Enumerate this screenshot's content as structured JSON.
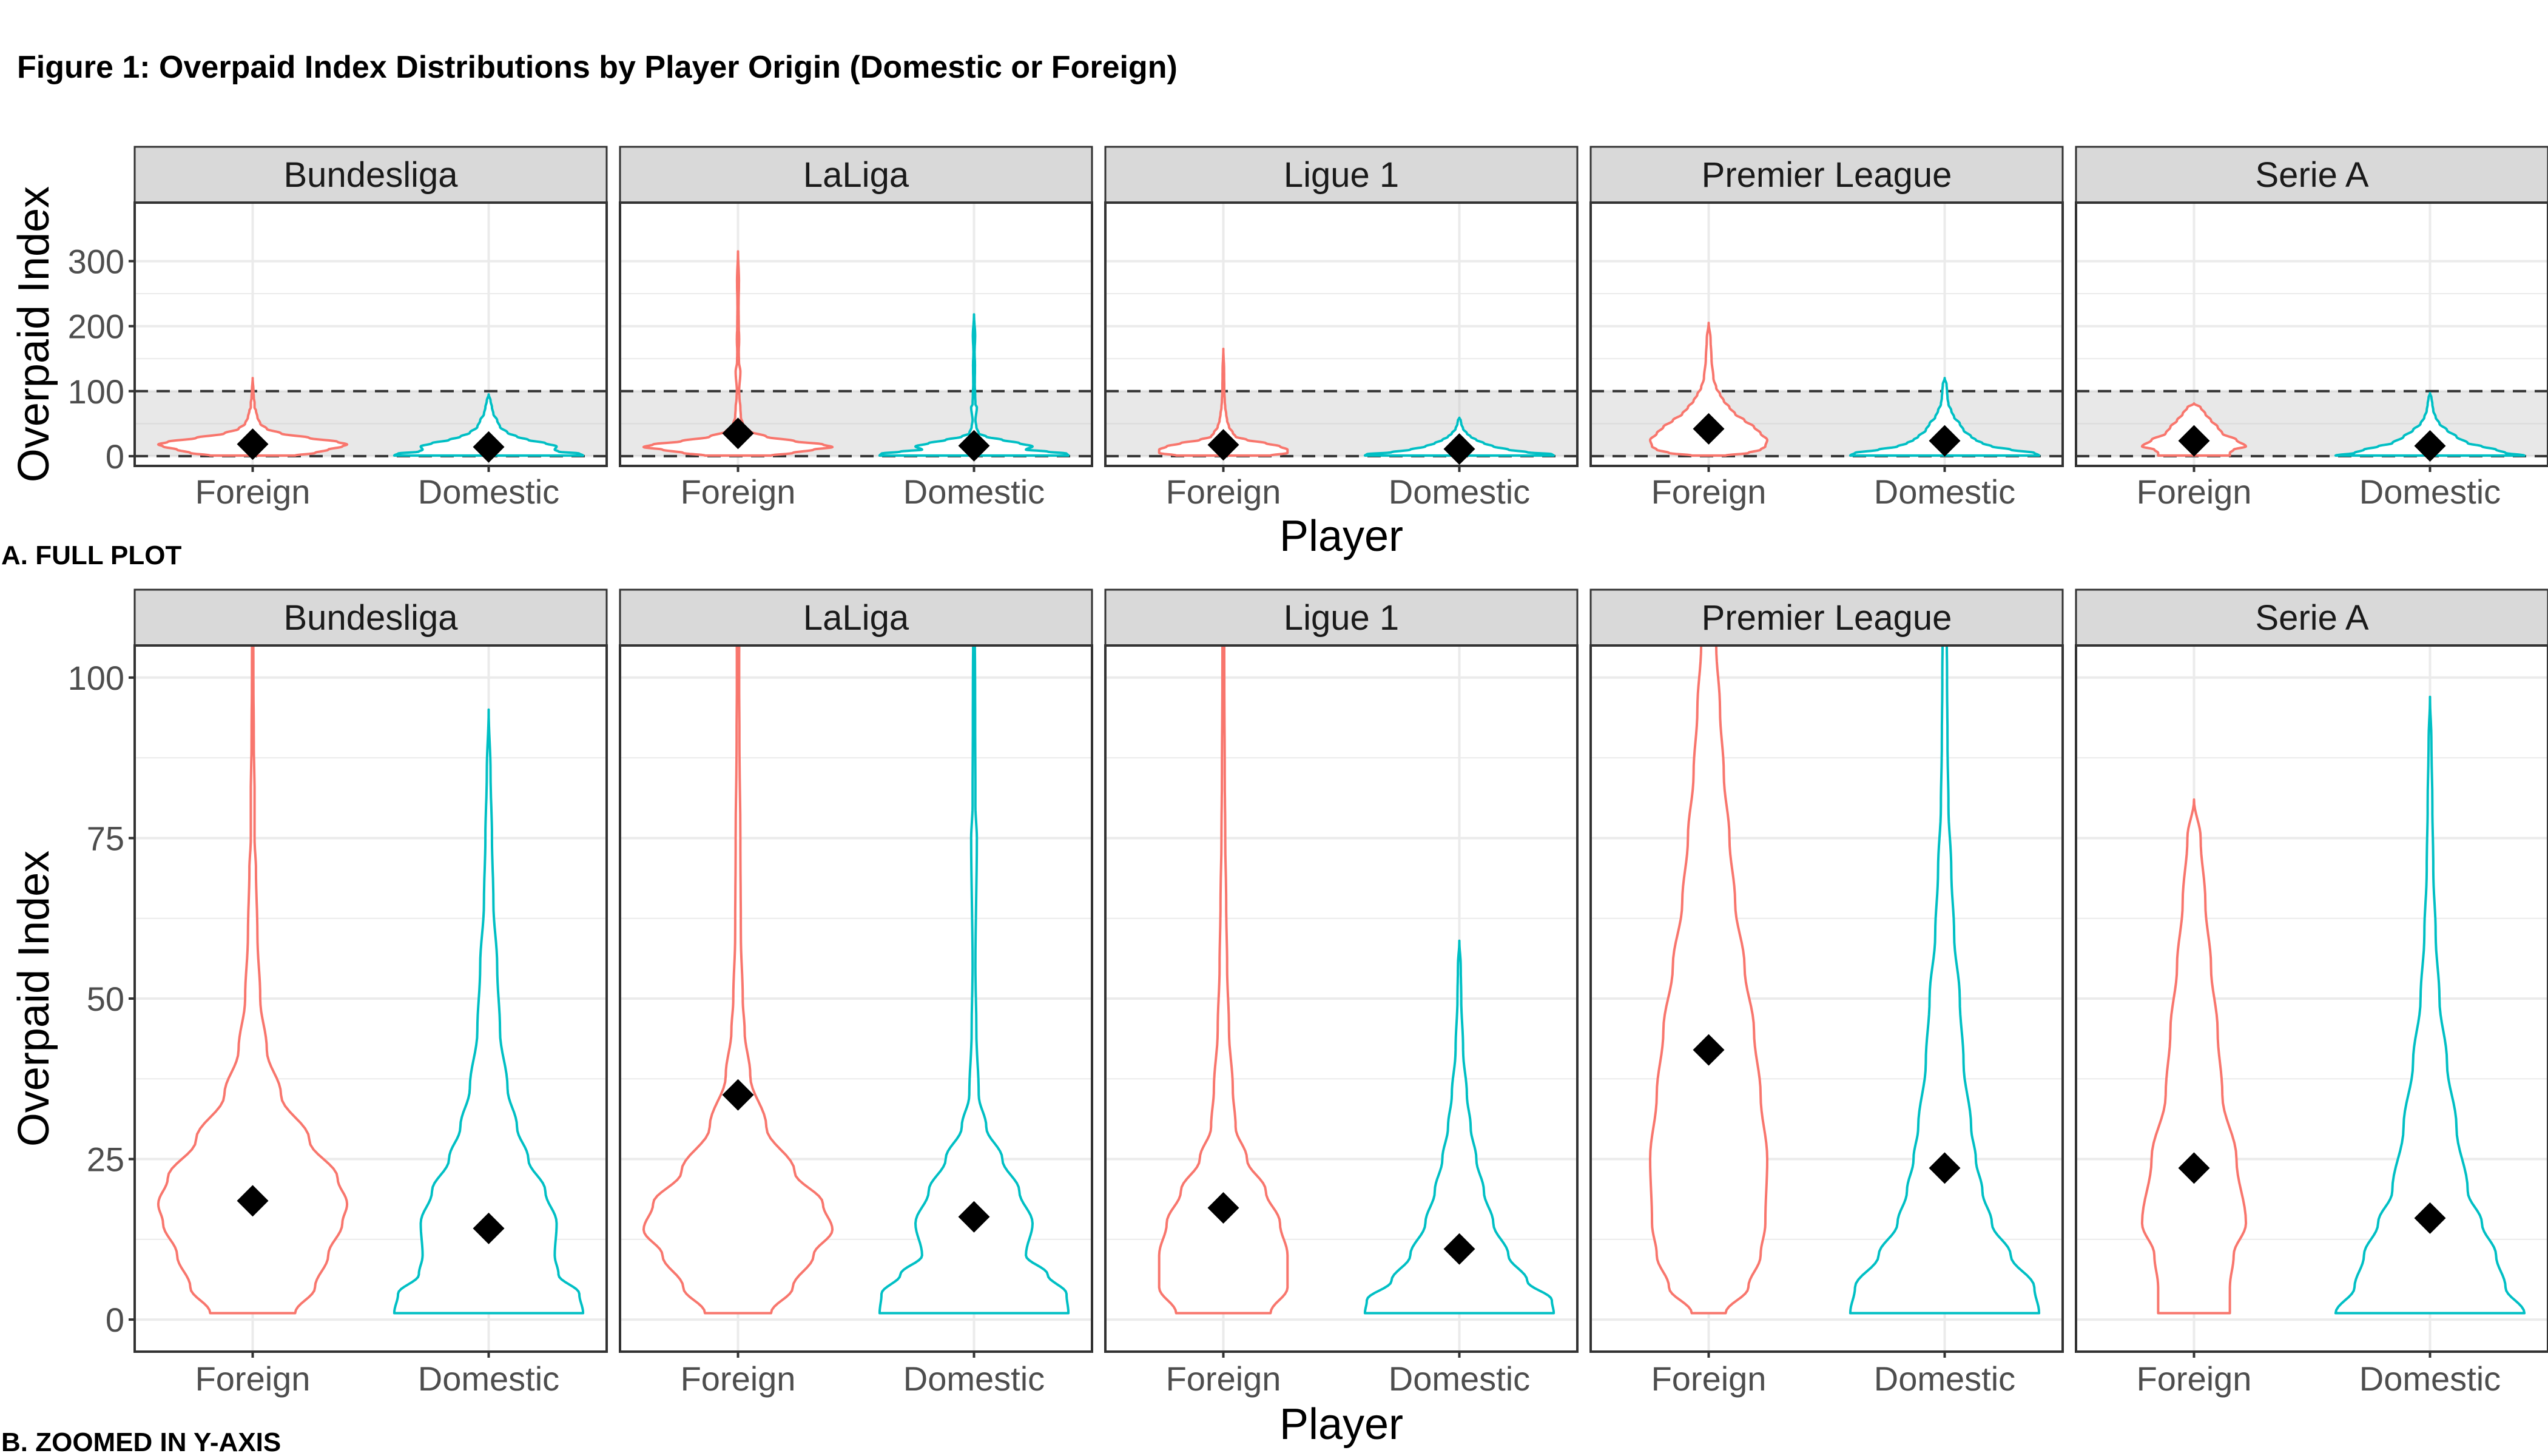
{
  "figure_title": "Figure 1: Overpaid Index Distributions by Player Origin (Domestic or Foreign)",
  "colors": {
    "foreign": "#F8766D",
    "domestic": "#00BFC4",
    "mean_marker": "#000000",
    "strip": "#d9d9d9",
    "band": "#e5e5e5"
  },
  "chart_data": [
    {
      "type": "violin",
      "panel_label": "A. FULL PLOT",
      "xlabel": "Player",
      "ylabel": "Overpaid Index",
      "ylim": [
        -15,
        390
      ],
      "yticks": [
        0,
        100,
        200,
        300
      ],
      "grid": true,
      "reference_lines": [
        0,
        100
      ],
      "shaded_band": [
        0,
        100
      ],
      "facets": [
        "Bundesliga",
        "LaLiga",
        "Ligue 1",
        "Premier League",
        "Serie A"
      ],
      "categories": [
        "Foreign",
        "Domestic"
      ],
      "series": [
        {
          "facet": "Bundesliga",
          "group": "Foreign",
          "min": 1,
          "max": 120,
          "mean": 18.5
        },
        {
          "facet": "Bundesliga",
          "group": "Domestic",
          "min": 1,
          "max": 95,
          "mean": 14.2
        },
        {
          "facet": "LaLiga",
          "group": "Foreign",
          "min": 1,
          "max": 315,
          "mean": 35
        },
        {
          "facet": "LaLiga",
          "group": "Domestic",
          "min": 1,
          "max": 218,
          "mean": 16
        },
        {
          "facet": "Ligue 1",
          "group": "Foreign",
          "min": 1,
          "max": 165,
          "mean": 17.4
        },
        {
          "facet": "Ligue 1",
          "group": "Domestic",
          "min": 1,
          "max": 59,
          "mean": 11
        },
        {
          "facet": "Premier League",
          "group": "Foreign",
          "min": 1,
          "max": 205,
          "mean": 42
        },
        {
          "facet": "Premier League",
          "group": "Domestic",
          "min": 1,
          "max": 120,
          "mean": 23.6
        },
        {
          "facet": "Serie A",
          "group": "Foreign",
          "min": 1,
          "max": 81,
          "mean": 23.6
        },
        {
          "facet": "Serie A",
          "group": "Domestic",
          "min": 1,
          "max": 97,
          "mean": 15.8
        }
      ]
    },
    {
      "type": "violin",
      "panel_label": "B. ZOOMED IN Y-AXIS",
      "xlabel": "Player",
      "ylabel": "Overpaid Index",
      "ylim": [
        -5,
        105
      ],
      "yticks": [
        0,
        25,
        50,
        75,
        100
      ],
      "grid": true,
      "facets": [
        "Bundesliga",
        "LaLiga",
        "Ligue 1",
        "Premier League",
        "Serie A"
      ],
      "categories": [
        "Foreign",
        "Domestic"
      ],
      "series": [
        {
          "facet": "Bundesliga",
          "group": "Foreign",
          "min": 1,
          "max": 120,
          "mean": 18.5
        },
        {
          "facet": "Bundesliga",
          "group": "Domestic",
          "min": 1,
          "max": 95,
          "mean": 14.2
        },
        {
          "facet": "LaLiga",
          "group": "Foreign",
          "min": 1,
          "max": 315,
          "mean": 35
        },
        {
          "facet": "LaLiga",
          "group": "Domestic",
          "min": 1,
          "max": 218,
          "mean": 16
        },
        {
          "facet": "Ligue 1",
          "group": "Foreign",
          "min": 1,
          "max": 165,
          "mean": 17.4
        },
        {
          "facet": "Ligue 1",
          "group": "Domestic",
          "min": 1,
          "max": 59,
          "mean": 11
        },
        {
          "facet": "Premier League",
          "group": "Foreign",
          "min": 1,
          "max": 205,
          "mean": 42
        },
        {
          "facet": "Premier League",
          "group": "Domestic",
          "min": 1,
          "max": 120,
          "mean": 23.6
        },
        {
          "facet": "Serie A",
          "group": "Foreign",
          "min": 1,
          "max": 81,
          "mean": 23.6
        },
        {
          "facet": "Serie A",
          "group": "Domestic",
          "min": 1,
          "max": 97,
          "mean": 15.8
        }
      ]
    }
  ]
}
